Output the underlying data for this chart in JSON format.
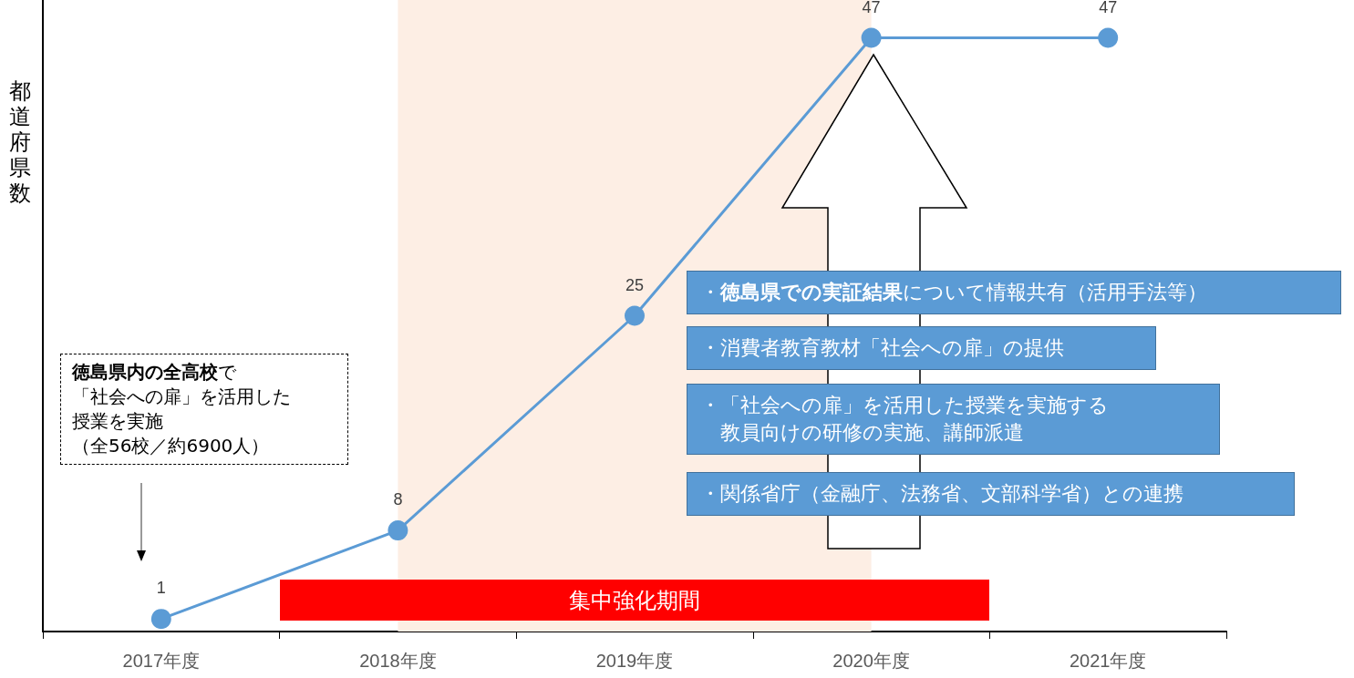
{
  "chart_data": {
    "type": "line",
    "ylabel": "都道府県数",
    "categories": [
      "2017年度",
      "2018年度",
      "2019年度",
      "2020年度",
      "2021年度"
    ],
    "series": [
      {
        "color": "#5b9bd5",
        "values": [
          1,
          8,
          25,
          47,
          47
        ]
      }
    ],
    "ylim": [
      0,
      50
    ],
    "tick_labels": "x",
    "data_labels": true,
    "marker": "circle",
    "bands": [
      {
        "axis": "x",
        "from": "2018年度",
        "to": "2020年度",
        "label": "集中強化期間",
        "color": "#fdeee4"
      }
    ],
    "annotations": [
      "徳島県内の全高校で「社会への扉」を活用した授業を実施（全56校／約6900人）",
      "・徳島県での実証結果について情報共有（活用手法等）",
      "・消費者教育教材「社会への扉」の提供",
      "・「社会への扉」を活用した授業を実施する教員向けの研修の実施、講師派遣",
      "・関係省庁（金融庁、法務省、文部科学省）との連携"
    ]
  }
}
